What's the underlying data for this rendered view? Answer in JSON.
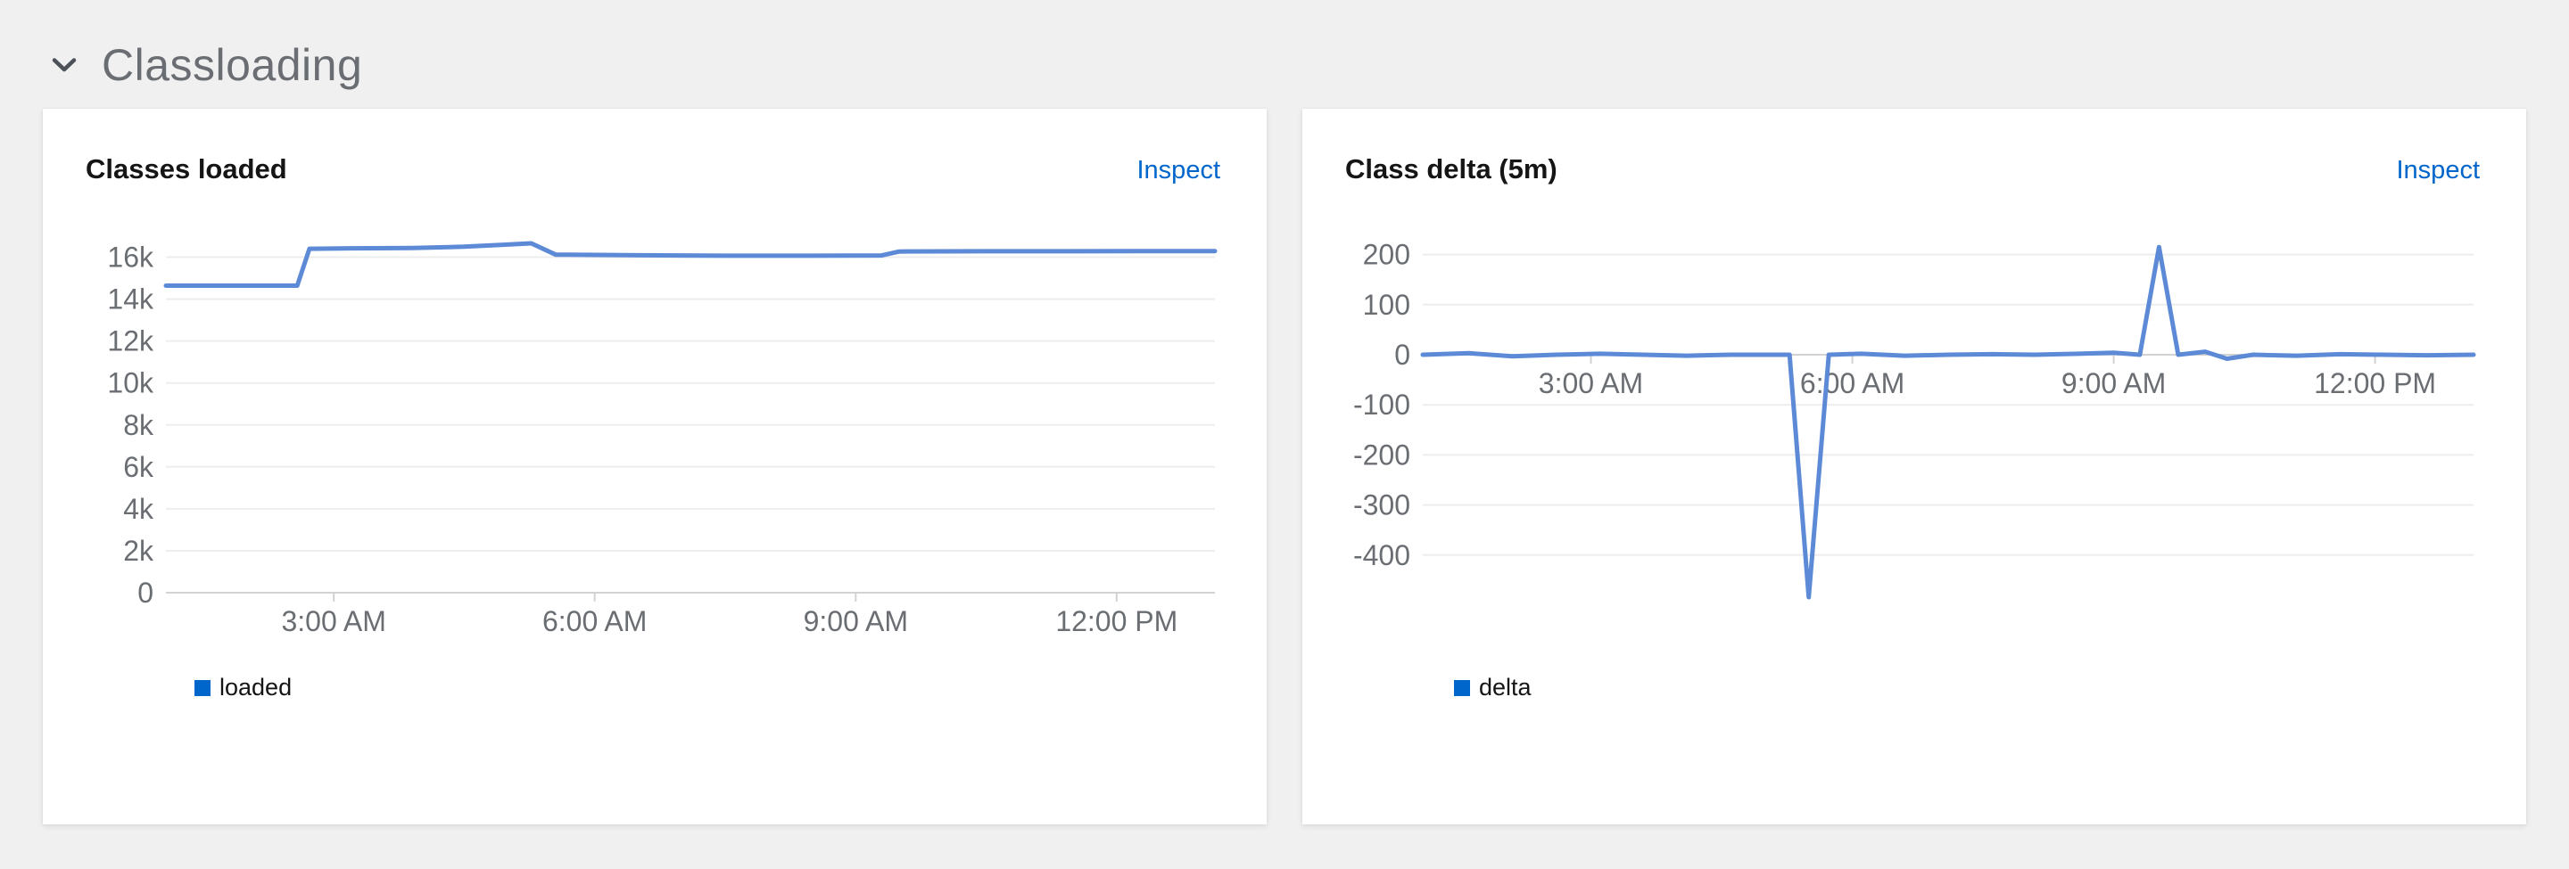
{
  "section": {
    "title": "Classloading"
  },
  "cards": [
    {
      "title": "Classes loaded",
      "action_label": "Inspect",
      "legend": "loaded"
    },
    {
      "title": "Class delta (5m)",
      "action_label": "Inspect",
      "legend": "delta"
    }
  ],
  "colors": {
    "page_background": "#f0f0f0",
    "card_background": "#ffffff",
    "link_blue": "#0066cc",
    "line_blue": "#5c8ad6",
    "legend_blue": "#0066cc",
    "grid_line": "#ededed",
    "axis_line": "#d2d2d2",
    "tick_text": "#6a6e73",
    "section_title_text": "#6a6e73"
  },
  "chart_data": [
    {
      "type": "line",
      "title": "Classes loaded",
      "x_domain": [
        1.07,
        13.13
      ],
      "y_domain": [
        0,
        17000
      ],
      "grid": true,
      "legend_position": "bottom-left",
      "x_ticks": [
        {
          "t": 3,
          "label": "3:00 AM"
        },
        {
          "t": 6,
          "label": "6:00 AM"
        },
        {
          "t": 9,
          "label": "9:00 AM"
        },
        {
          "t": 12,
          "label": "12:00 PM"
        }
      ],
      "y_ticks": [
        {
          "value": 16000,
          "label": "16k"
        },
        {
          "value": 14000,
          "label": "14k"
        },
        {
          "value": 12000,
          "label": "12k"
        },
        {
          "value": 10000,
          "label": "10k"
        },
        {
          "value": 8000,
          "label": "8k"
        },
        {
          "value": 6000,
          "label": "6k"
        },
        {
          "value": 4000,
          "label": "4k"
        },
        {
          "value": 2000,
          "label": "2k"
        },
        {
          "value": 0,
          "label": "0"
        }
      ],
      "series": [
        {
          "name": "loaded",
          "line_color": "#5c8ad6",
          "legend_color": "#0066cc",
          "points": [
            [
              1.07,
              14640
            ],
            [
              1.5,
              14640
            ],
            [
              2.0,
              14640
            ],
            [
              2.58,
              14640
            ],
            [
              2.72,
              16400
            ],
            [
              3.2,
              16420
            ],
            [
              3.9,
              16440
            ],
            [
              4.5,
              16500
            ],
            [
              5.0,
              16600
            ],
            [
              5.27,
              16660
            ],
            [
              5.55,
              16120
            ],
            [
              6.5,
              16090
            ],
            [
              7.5,
              16070
            ],
            [
              8.5,
              16070
            ],
            [
              9.3,
              16080
            ],
            [
              9.5,
              16270
            ],
            [
              10.5,
              16280
            ],
            [
              11.5,
              16280
            ],
            [
              12.5,
              16290
            ],
            [
              13.13,
              16290
            ]
          ]
        }
      ]
    },
    {
      "type": "line",
      "title": "Class delta (5m)",
      "x_domain": [
        1.07,
        13.13
      ],
      "y_domain": [
        -520,
        250
      ],
      "grid": true,
      "legend_position": "bottom-left",
      "x_ticks": [
        {
          "t": 3,
          "label": "3:00 AM"
        },
        {
          "t": 6,
          "label": "6:00 AM"
        },
        {
          "t": 9,
          "label": "9:00 AM"
        },
        {
          "t": 12,
          "label": "12:00 PM"
        }
      ],
      "y_ticks": [
        {
          "value": 200,
          "label": "200"
        },
        {
          "value": 100,
          "label": "100"
        },
        {
          "value": 0,
          "label": "0"
        },
        {
          "value": -100,
          "label": "-100"
        },
        {
          "value": -200,
          "label": "-200"
        },
        {
          "value": -300,
          "label": "-300"
        },
        {
          "value": -400,
          "label": "-400"
        }
      ],
      "series": [
        {
          "name": "delta",
          "line_color": "#5c8ad6",
          "legend_color": "#0066cc",
          "points": [
            [
              1.07,
              0
            ],
            [
              1.6,
              3
            ],
            [
              2.1,
              -3
            ],
            [
              2.6,
              0
            ],
            [
              3.1,
              2
            ],
            [
              3.6,
              0
            ],
            [
              4.1,
              -2
            ],
            [
              4.6,
              0
            ],
            [
              5.0,
              0
            ],
            [
              5.28,
              0
            ],
            [
              5.5,
              -484
            ],
            [
              5.73,
              0
            ],
            [
              6.1,
              2
            ],
            [
              6.6,
              -2
            ],
            [
              7.1,
              0
            ],
            [
              7.6,
              1
            ],
            [
              8.1,
              0
            ],
            [
              8.6,
              2
            ],
            [
              9.0,
              4
            ],
            [
              9.3,
              0
            ],
            [
              9.52,
              215
            ],
            [
              9.74,
              0
            ],
            [
              10.05,
              6
            ],
            [
              10.3,
              -8
            ],
            [
              10.6,
              0
            ],
            [
              11.1,
              -2
            ],
            [
              11.6,
              1
            ],
            [
              12.1,
              0
            ],
            [
              12.6,
              -1
            ],
            [
              13.13,
              0
            ]
          ]
        }
      ]
    }
  ]
}
